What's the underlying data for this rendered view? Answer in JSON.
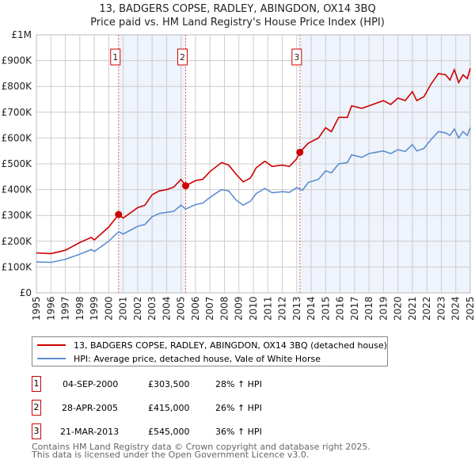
{
  "chart_data": {
    "type": "line",
    "title": "13, BADGERS COPSE, RADLEY, ABINGDON, OX14 3BQ",
    "subtitle": "Price paid vs. HM Land Registry's House Price Index (HPI)",
    "xlim": [
      1995,
      2025
    ],
    "ylim": [
      0,
      1000000
    ],
    "x_ticks": [
      "1995",
      "1996",
      "1997",
      "1998",
      "1999",
      "2000",
      "2001",
      "2002",
      "2003",
      "2004",
      "2005",
      "2006",
      "2007",
      "2008",
      "2009",
      "2010",
      "2011",
      "2012",
      "2013",
      "2014",
      "2015",
      "2016",
      "2017",
      "2018",
      "2019",
      "2020",
      "2021",
      "2022",
      "2023",
      "2024",
      "2025"
    ],
    "y_ticks": [
      {
        "v": 0,
        "label": "£0"
      },
      {
        "v": 100000,
        "label": "£100K"
      },
      {
        "v": 200000,
        "label": "£200K"
      },
      {
        "v": 300000,
        "label": "£300K"
      },
      {
        "v": 400000,
        "label": "£400K"
      },
      {
        "v": 500000,
        "label": "£500K"
      },
      {
        "v": 600000,
        "label": "£600K"
      },
      {
        "v": 700000,
        "label": "£700K"
      },
      {
        "v": 800000,
        "label": "£800K"
      },
      {
        "v": 900000,
        "label": "£900K"
      },
      {
        "v": 1000000,
        "label": "£1M"
      }
    ],
    "grid": true,
    "series": [
      {
        "name": "13, BADGERS COPSE, RADLEY, ABINGDON, OX14 3BQ (detached house)",
        "color": "#cc0000",
        "x": [
          1995,
          1996,
          1997,
          1998,
          1998.8,
          1999,
          2000,
          2000.68,
          2001,
          2002,
          2002.5,
          2003,
          2003.5,
          2004,
          2004.5,
          2005,
          2005.32,
          2006,
          2006.5,
          2007,
          2007.8,
          2008.3,
          2008.8,
          2009.3,
          2009.8,
          2010.2,
          2010.8,
          2011.3,
          2012,
          2012.5,
          2013,
          2013.22,
          2013.8,
          2014.5,
          2015,
          2015.4,
          2015.9,
          2016.5,
          2016.8,
          2017.5,
          2018,
          2018.5,
          2019,
          2019.5,
          2020,
          2020.5,
          2021,
          2021.3,
          2021.8,
          2022.3,
          2022.8,
          2023.3,
          2023.6,
          2023.9,
          2024.2,
          2024.5,
          2024.8,
          2025
        ],
        "y": [
          155000,
          152000,
          165000,
          195000,
          215000,
          205000,
          255000,
          303500,
          290000,
          330000,
          340000,
          380000,
          395000,
          400000,
          410000,
          440000,
          415000,
          435000,
          440000,
          470000,
          505000,
          495000,
          460000,
          430000,
          445000,
          485000,
          510000,
          490000,
          495000,
          490000,
          520000,
          545000,
          580000,
          600000,
          640000,
          625000,
          680000,
          680000,
          725000,
          715000,
          725000,
          735000,
          745000,
          730000,
          755000,
          745000,
          780000,
          745000,
          760000,
          810000,
          850000,
          845000,
          825000,
          865000,
          815000,
          845000,
          830000,
          870000
        ]
      },
      {
        "name": "HPI: Average price, detached house, Vale of White Horse",
        "color": "#5b8fd0",
        "x": [
          1995,
          1996,
          1997,
          1998,
          1998.8,
          1999,
          2000,
          2000.68,
          2001,
          2002,
          2002.5,
          2003,
          2003.5,
          2004,
          2004.5,
          2005,
          2005.32,
          2006,
          2006.5,
          2007,
          2007.8,
          2008.3,
          2008.8,
          2009.3,
          2009.8,
          2010.2,
          2010.8,
          2011.3,
          2012,
          2012.5,
          2013,
          2013.4,
          2013.8,
          2014.5,
          2015,
          2015.4,
          2015.9,
          2016.5,
          2016.8,
          2017.5,
          2018,
          2018.5,
          2019,
          2019.5,
          2020,
          2020.5,
          2021,
          2021.3,
          2021.8,
          2022.3,
          2022.8,
          2023.3,
          2023.6,
          2023.9,
          2024.2,
          2024.5,
          2024.8,
          2025
        ],
        "y": [
          120000,
          118000,
          130000,
          150000,
          168000,
          160000,
          200000,
          237000,
          228000,
          258000,
          265000,
          295000,
          308000,
          312000,
          316000,
          340000,
          325000,
          342000,
          348000,
          370000,
          400000,
          395000,
          360000,
          340000,
          355000,
          385000,
          405000,
          388000,
          392000,
          390000,
          408000,
          398000,
          428000,
          440000,
          473000,
          465000,
          500000,
          505000,
          535000,
          525000,
          540000,
          545000,
          550000,
          540000,
          555000,
          548000,
          575000,
          550000,
          560000,
          595000,
          625000,
          620000,
          610000,
          635000,
          600000,
          625000,
          610000,
          640000
        ]
      }
    ],
    "sales": [
      {
        "label": "1",
        "x": 2000.68,
        "y": 303500,
        "date": "04-SEP-2000",
        "price": "£303,500",
        "hpi": "28% ↑ HPI"
      },
      {
        "label": "2",
        "x": 2005.32,
        "y": 415000,
        "date": "28-APR-2005",
        "price": "£415,000",
        "hpi": "26% ↑ HPI"
      },
      {
        "label": "3",
        "x": 2013.22,
        "y": 545000,
        "date": "21-MAR-2013",
        "price": "£545,000",
        "hpi": "36% ↑ HPI"
      }
    ],
    "shade_color": "#eef3fc"
  },
  "footer": {
    "line1": "Contains HM Land Registry data © Crown copyright and database right 2025.",
    "line2": "This data is licensed under the Open Government Licence v3.0."
  }
}
